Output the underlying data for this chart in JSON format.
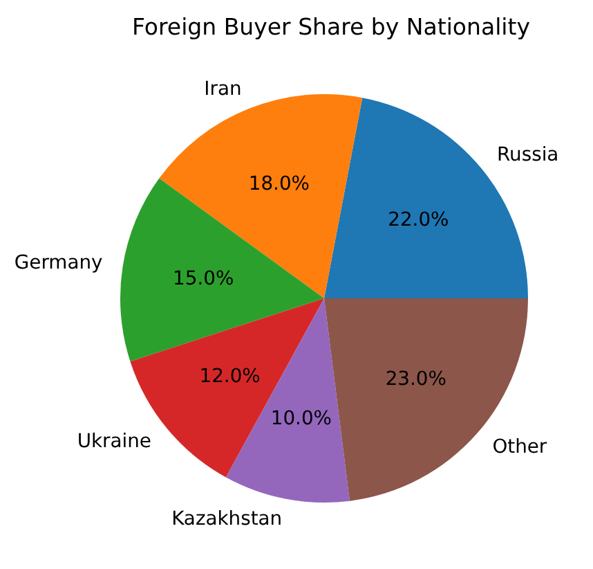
{
  "chart_data": {
    "type": "pie",
    "title": "Foreign Buyer Share by Nationality",
    "categories": [
      "Russia",
      "Iran",
      "Germany",
      "Ukraine",
      "Kazakhstan",
      "Other"
    ],
    "values": [
      22,
      18,
      15,
      12,
      10,
      23
    ],
    "colors": [
      "#1f77b4",
      "#ff7f0e",
      "#2ca02c",
      "#d62728",
      "#9467bd",
      "#8c564b"
    ],
    "value_labels": [
      "22.0%",
      "18.0%",
      "15.0%",
      "12.0%",
      "10.0%",
      "23.0%"
    ]
  }
}
